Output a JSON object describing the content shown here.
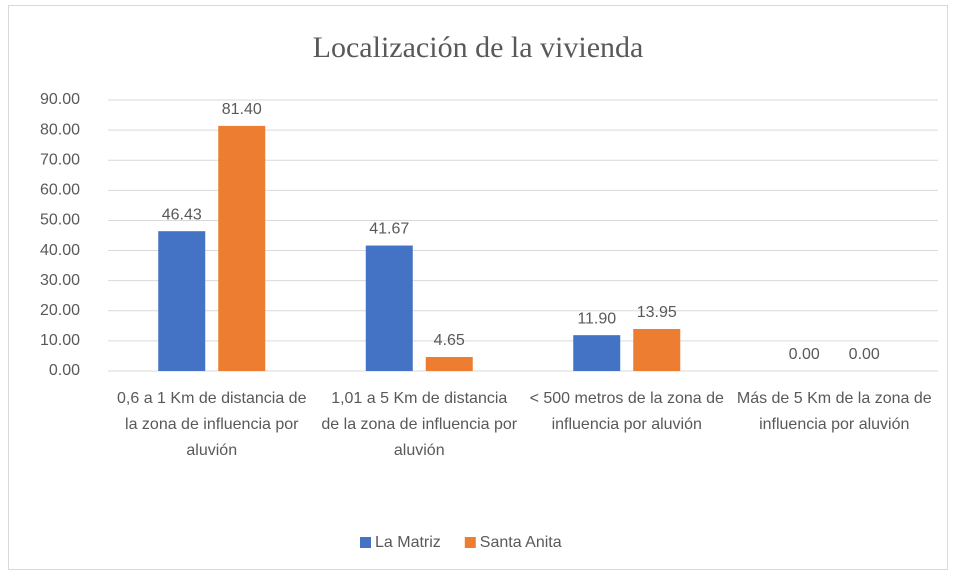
{
  "chart_data": {
    "type": "bar",
    "title": "Localización de la vivienda",
    "categories": [
      "0,6 a 1 Km de distancia de la zona de influencia por aluvión",
      "1,01 a 5 Km de distancia de la zona de influencia por aluvión",
      "< 500 metros de la zona de influencia por aluvión",
      "Más de 5 Km de la zona de influencia por aluvión"
    ],
    "series": [
      {
        "name": "La Matriz",
        "color": "#4472c4",
        "values": [
          46.43,
          41.67,
          11.9,
          0
        ],
        "value_labels": [
          "46.43",
          "41.67",
          "11.90",
          "0.00"
        ]
      },
      {
        "name": "Santa Anita",
        "color": "#ed7d31",
        "values": [
          81.4,
          4.65,
          13.95,
          0
        ],
        "value_labels": [
          "81.40",
          "4.65",
          "13.95",
          "0.00"
        ]
      }
    ],
    "ylim": [
      0,
      90
    ],
    "yticks": [
      {
        "value": 0,
        "label": "0.00"
      },
      {
        "value": 10,
        "label": "10.00"
      },
      {
        "value": 20,
        "label": "20.00"
      },
      {
        "value": 30,
        "label": "30.00"
      },
      {
        "value": 40,
        "label": "40.00"
      },
      {
        "value": 50,
        "label": "50.00"
      },
      {
        "value": 60,
        "label": "60.00"
      },
      {
        "value": 70,
        "label": "70.00"
      },
      {
        "value": 80,
        "label": "80.00"
      },
      {
        "value": 90,
        "label": "90.00"
      }
    ],
    "grid": true,
    "legend": "bottom"
  }
}
